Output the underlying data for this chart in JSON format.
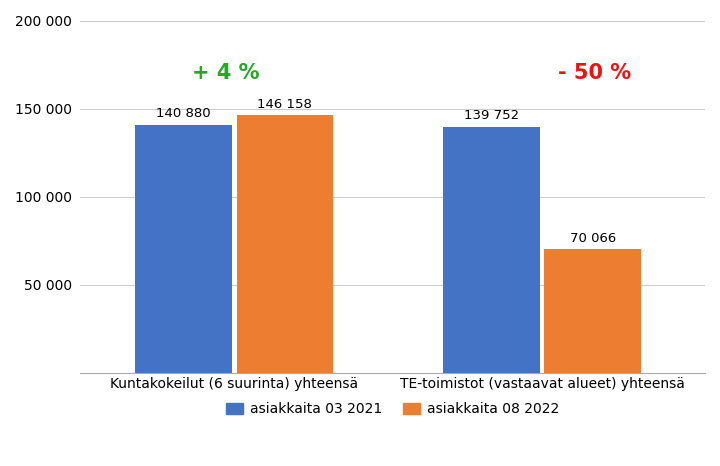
{
  "groups": [
    "Kuntakokeilut (6 suurinta) yhteensä",
    "TE-toimistot (vastaavat alueet) yhteensä"
  ],
  "bar1_values": [
    140880,
    139752
  ],
  "bar2_values": [
    146158,
    70066
  ],
  "bar1_labels": [
    "140 880",
    "139 752"
  ],
  "bar2_labels": [
    "146 158",
    "70 066"
  ],
  "bar1_color": "#4472C4",
  "bar2_color": "#ED7D31",
  "ylim": [
    0,
    200000
  ],
  "yticks": [
    50000,
    100000,
    150000,
    200000
  ],
  "ytick_labels": [
    "50 000",
    "100 000",
    "150 000",
    "200 000"
  ],
  "change_labels": [
    "+ 4 %",
    "- 50 %"
  ],
  "change_colors": [
    "#22AA22",
    "#EE1111"
  ],
  "legend_labels": [
    "asiakkaita 03 2021",
    "asiakkaita 08 2022"
  ],
  "bar_width": 0.22,
  "group_centers": [
    0.35,
    1.05
  ]
}
